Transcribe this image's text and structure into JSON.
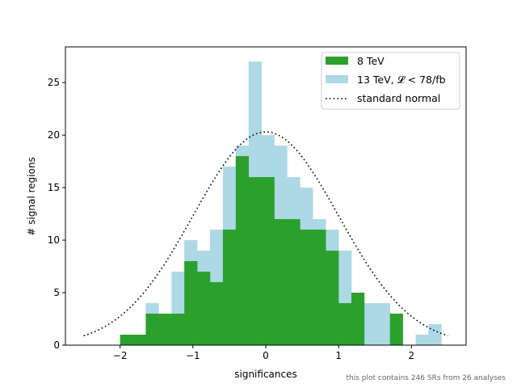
{
  "chart_data": {
    "type": "bar",
    "xlabel": "significances",
    "ylabel": "# signal regions",
    "xlim": [
      -2.75,
      2.75
    ],
    "ylim": [
      0,
      28.4
    ],
    "xticks": [
      -2,
      -1,
      0,
      1,
      2
    ],
    "yticks": [
      0,
      5,
      10,
      15,
      20,
      25
    ],
    "bin_width": 0.1764,
    "bin_starts": [
      -2.0,
      -1.8236,
      -1.6472,
      -1.4708,
      -1.2944,
      -1.118,
      -0.9416,
      -0.7652,
      -0.5888,
      -0.4124,
      -0.236,
      -0.0596,
      0.1168,
      0.2932,
      0.4696,
      0.646,
      0.8224,
      0.9988,
      1.1752,
      1.3516,
      1.528,
      1.7044,
      1.8808,
      2.0572,
      2.2336,
      2.41
    ],
    "series": [
      {
        "name": "13 TeV, 𝓛 < 78/fb",
        "color": "#add8e6",
        "values": [
          0,
          0,
          4,
          3,
          7,
          10,
          9,
          11,
          17,
          19,
          27,
          20,
          19,
          16,
          15,
          12,
          11,
          9,
          0,
          4,
          4,
          3,
          0,
          1,
          2,
          0
        ]
      },
      {
        "name": "8 TeV",
        "color": "#2ca02c",
        "values": [
          1,
          1,
          3,
          3,
          3,
          8,
          7,
          6,
          11,
          18,
          16,
          16,
          12,
          12,
          11,
          11,
          9,
          4,
          5,
          0,
          0,
          3,
          0,
          0,
          0,
          0
        ]
      }
    ],
    "curve": {
      "name": "standard normal",
      "amplitude": 20.3,
      "x_range": [
        -2.5,
        2.5
      ]
    },
    "legend": {
      "placement": "top-right",
      "entries": [
        {
          "label": "8 TeV",
          "color": "#2ca02c",
          "kind": "patch"
        },
        {
          "label": "13 TeV, 𝓛 < 78/fb",
          "color": "#add8e6",
          "kind": "patch"
        },
        {
          "label": "standard normal",
          "color": "#000000",
          "kind": "dotted-line"
        }
      ]
    },
    "footnote": "this plot contains 246 SRs from 26 analyses"
  }
}
